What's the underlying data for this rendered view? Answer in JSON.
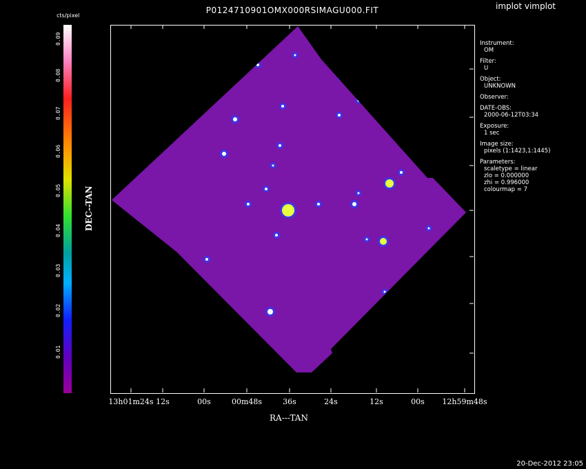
{
  "app_title": "implot vimplot",
  "image_title": "P0124710901OMX000RSIMAGU000.FIT",
  "colorbar": {
    "unit": "cts/pixel",
    "ticks": [
      "0.09",
      "0.08",
      "0.07",
      "0.06",
      "0.05",
      "0.04",
      "0.03",
      "0.02",
      "0.01"
    ]
  },
  "axes": {
    "xlabel": "RA---TAN",
    "ylabel": "DEC--TAN",
    "x_ticks": [
      "13h01m24s",
      "12s",
      "00s",
      "00m48s",
      "36s",
      "24s",
      "12s",
      "00s",
      "12h59m48s"
    ]
  },
  "info": [
    {
      "key": "Instrument:",
      "value": "OM"
    },
    {
      "key": "Filter:",
      "value": "U"
    },
    {
      "key": "Object:",
      "value": "UNKNOWN"
    },
    {
      "key": "Observer:",
      "value": ""
    },
    {
      "key": "DATE-OBS:",
      "value": "2000-06-12T03:34"
    },
    {
      "key": "Exposure:",
      "value": "1 sec"
    },
    {
      "key": "Image size:",
      "value": "pixels (1:1423,1:1445)"
    },
    {
      "key": "Parameters:",
      "value": "scaletype = linear"
    },
    {
      "key": "",
      "value": "zlo = 0.000000"
    },
    {
      "key": "",
      "value": "zhi = 0.996000"
    },
    {
      "key": "",
      "value": "colourmap =  7"
    }
  ],
  "datestamp": "20-Dec-2012 23:05",
  "colors": {
    "background": "#000000",
    "field": "#7a16a8",
    "axis": "#ffffff"
  }
}
